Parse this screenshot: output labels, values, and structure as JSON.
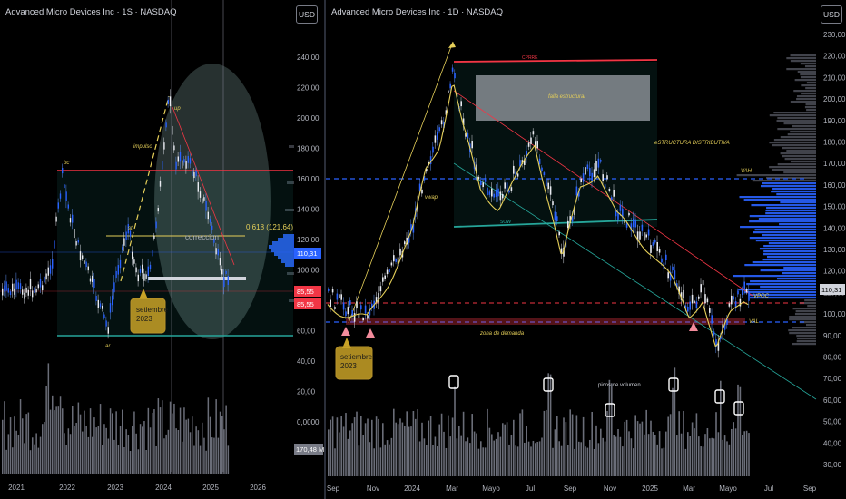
{
  "left": {
    "title": "Advanced Micro Devices Inc · 1S · NASDAQ",
    "currency_button": "USD",
    "price_axis": [
      "240,00",
      "220,00",
      "200,00",
      "180,00",
      "160,00",
      "140,00",
      "120,00",
      "100,00",
      "80,00",
      "60,00",
      "40,00",
      "20,00",
      "0,0000"
    ],
    "time_axis": [
      "2021",
      "2022",
      "2023",
      "2024",
      "2025",
      "2026"
    ],
    "price_tags": {
      "current": "110,31",
      "tag_a": "85,55",
      "tag_b": "85,55",
      "volume": "170,48 M"
    },
    "annotations": {
      "bc": "bc",
      "up": "up",
      "impulso": "impulso",
      "st": "st",
      "correccion": "correccion",
      "ar": "ar",
      "fib": "0,618 (121,64)",
      "callout": [
        "setiembre",
        "2023"
      ]
    },
    "colors": {
      "resistance": "#f23645",
      "support": "#26a69a",
      "fib": "#e5cf59",
      "callout": "#c9a227"
    }
  },
  "right": {
    "title": "Advanced Micro Devices Inc · 1D · NASDAQ",
    "currency_button": "USD",
    "price_axis": [
      "230,00",
      "220,00",
      "210,00",
      "200,00",
      "190,00",
      "180,00",
      "170,00",
      "160,00",
      "150,00",
      "140,00",
      "130,00",
      "120,00",
      "110,00",
      "100,00",
      "90,00",
      "80,00",
      "70,00",
      "60,00",
      "50,00",
      "40,00",
      "30,00"
    ],
    "time_axis": [
      "Sep",
      "Nov",
      "2024",
      "Mar",
      "Mayo",
      "Jul",
      "Sep",
      "Nov",
      "2025",
      "Mar",
      "Mayo",
      "Jul",
      "Sep"
    ],
    "price_tags": {
      "current": "110,31"
    },
    "annotations": {
      "climax": "CPRRE",
      "falla": "falla estructural",
      "estructura": "eSTRUCTURA DISTRIBUTIVA",
      "vwap": "vwap",
      "sow": "SOW",
      "vah": "VAH",
      "vpoc": "VPOC",
      "val": "VAL",
      "zona": "zona de demanda",
      "picos": "picos de volumen",
      "callout": [
        "setiembre",
        "2023"
      ]
    },
    "colors": {
      "resistance": "#f23645",
      "support": "#26a69a",
      "vwap": "#e5cf59",
      "profile": "#2962ff"
    }
  }
}
